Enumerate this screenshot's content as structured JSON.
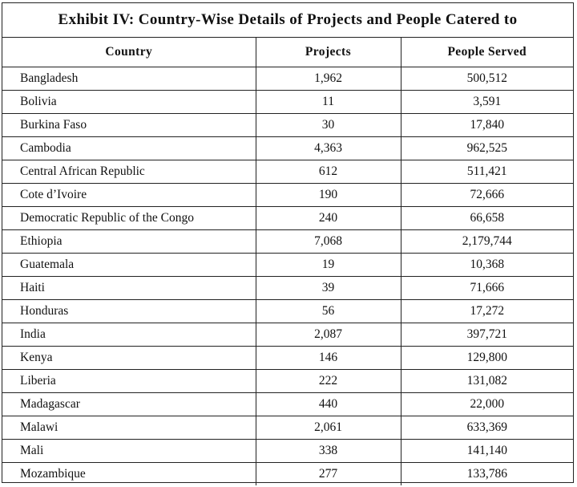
{
  "exhibit": {
    "title": "Exhibit IV: Country-Wise Details of Projects and People Catered to",
    "columns": [
      "Country",
      "Projects",
      "People Served"
    ],
    "rows": [
      {
        "country": "Bangladesh",
        "projects": "1,962",
        "people": "500,512"
      },
      {
        "country": "Bolivia",
        "projects": "11",
        "people": "3,591"
      },
      {
        "country": "Burkina Faso",
        "projects": "30",
        "people": "17,840"
      },
      {
        "country": "Cambodia",
        "projects": "4,363",
        "people": "962,525"
      },
      {
        "country": "Central African Republic",
        "projects": "612",
        "people": "511,421"
      },
      {
        "country": "Cote d’Ivoire",
        "projects": "190",
        "people": "72,666"
      },
      {
        "country": "Democratic Republic of the Congo",
        "projects": "240",
        "people": "66,658"
      },
      {
        "country": "Ethiopia",
        "projects": "7,068",
        "people": "2,179,744"
      },
      {
        "country": "Guatemala",
        "projects": "19",
        "people": "10,368"
      },
      {
        "country": "Haiti",
        "projects": "39",
        "people": "71,666"
      },
      {
        "country": "Honduras",
        "projects": "56",
        "people": "17,272"
      },
      {
        "country": "India",
        "projects": "2,087",
        "people": "397,721"
      },
      {
        "country": "Kenya",
        "projects": "146",
        "people": "129,800"
      },
      {
        "country": "Liberia",
        "projects": "222",
        "people": "131,082"
      },
      {
        "country": "Madagascar",
        "projects": "440",
        "people": "22,000"
      },
      {
        "country": "Malawi",
        "projects": "2,061",
        "people": "633,369"
      },
      {
        "country": "Mali",
        "projects": "338",
        "people": "141,140"
      },
      {
        "country": "Mozambique",
        "projects": "277",
        "people": "133,786"
      }
    ]
  }
}
